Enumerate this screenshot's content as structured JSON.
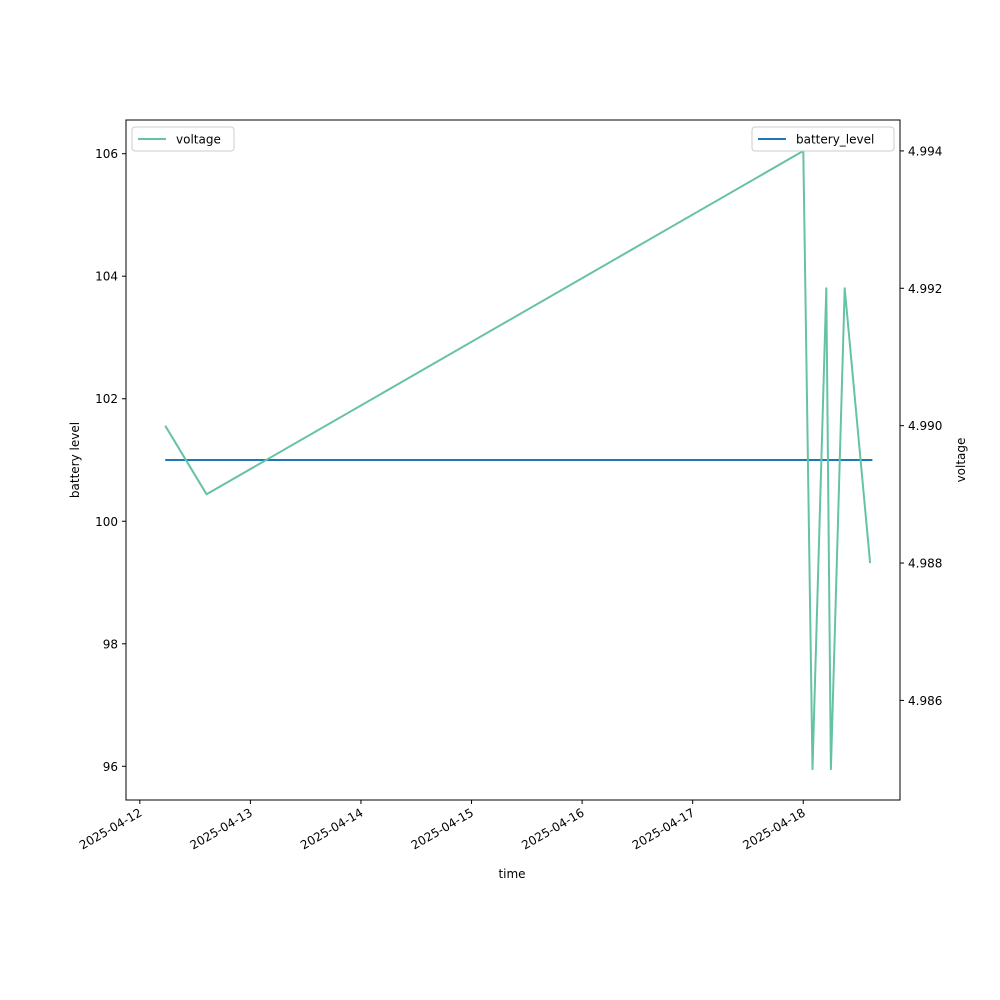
{
  "chart_data": {
    "type": "line",
    "xlabel": "time",
    "ylabel_left": "battery level",
    "ylabel_right": "voltage",
    "x_ticks": [
      "2025-04-12",
      "2025-04-13",
      "2025-04-14",
      "2025-04-15",
      "2025-04-16",
      "2025-04-17",
      "2025-04-18"
    ],
    "x_range": [
      "2025-04-11T21:00",
      "2025-04-18T21:00"
    ],
    "y_left_ticks": [
      96,
      98,
      100,
      102,
      104,
      106
    ],
    "y_left_range": [
      95.45,
      106.55
    ],
    "y_right_ticks": [
      4.986,
      4.988,
      4.99,
      4.992,
      4.994
    ],
    "y_right_range": [
      4.98455,
      4.99445
    ],
    "legend_left": "top-left",
    "legend_right": "top-right",
    "grid": false,
    "series": [
      {
        "name": "battery_level",
        "axis": "left",
        "color": "#1f77b4",
        "points": [
          {
            "x": "2025-04-12T05:30",
            "y": 101
          },
          {
            "x": "2025-04-18T15:00",
            "y": 101
          }
        ]
      },
      {
        "name": "voltage",
        "axis": "right",
        "color": "#66c2a5",
        "points": [
          {
            "x": "2025-04-12T05:30",
            "y": 4.99
          },
          {
            "x": "2025-04-12T14:30",
            "y": 4.989
          },
          {
            "x": "2025-04-18T00:00",
            "y": 4.994
          },
          {
            "x": "2025-04-18T02:00",
            "y": 4.985
          },
          {
            "x": "2025-04-18T05:00",
            "y": 4.992
          },
          {
            "x": "2025-04-18T06:00",
            "y": 4.985
          },
          {
            "x": "2025-04-18T09:00",
            "y": 4.992
          },
          {
            "x": "2025-04-18T14:30",
            "y": 4.988
          }
        ]
      }
    ]
  }
}
